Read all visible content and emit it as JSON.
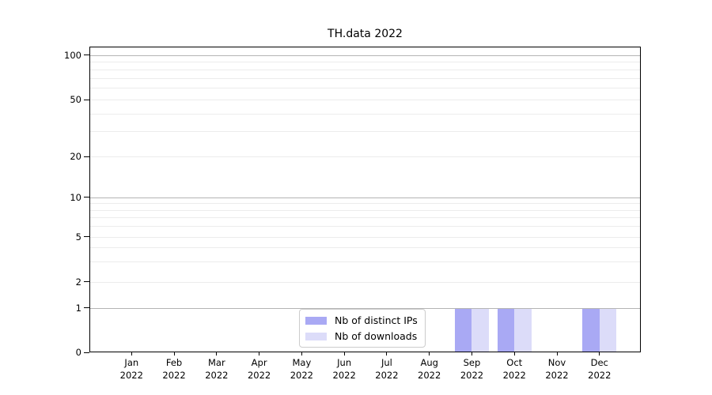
{
  "chart_data": {
    "type": "bar",
    "title": "TH.data 2022",
    "categories": [
      "Jan 2022",
      "Feb 2022",
      "Mar 2022",
      "Apr 2022",
      "May 2022",
      "Jun 2022",
      "Jul 2022",
      "Aug 2022",
      "Sep 2022",
      "Oct 2022",
      "Nov 2022",
      "Dec 2022"
    ],
    "series": [
      {
        "name": "Nb of distinct IPs",
        "color": "#a9a9f4",
        "values": [
          0,
          0,
          0,
          0,
          0,
          0,
          0,
          0,
          1,
          1,
          0,
          1
        ]
      },
      {
        "name": "Nb of downloads",
        "color": "#dcdcf9",
        "values": [
          0,
          0,
          0,
          0,
          0,
          0,
          0,
          0,
          1,
          1,
          0,
          1
        ]
      }
    ],
    "xlabel": "",
    "ylabel": "",
    "yscale": "log",
    "ylim": [
      0,
      115
    ],
    "yticks": [
      0,
      1,
      2,
      5,
      10,
      20,
      50,
      100
    ],
    "major_gridlines": [
      1,
      10,
      100
    ],
    "minor_gridlines": [
      2,
      3,
      4,
      5,
      6,
      7,
      8,
      9,
      20,
      30,
      40,
      50,
      60,
      70,
      80,
      90
    ],
    "grid": true,
    "legend": {
      "position": "lower-center",
      "entries": [
        "Nb of distinct IPs",
        "Nb of downloads"
      ]
    }
  }
}
